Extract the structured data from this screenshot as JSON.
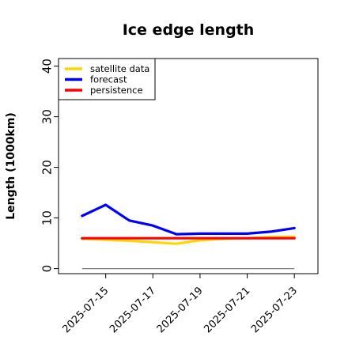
{
  "chart_data": {
    "type": "line",
    "title": "Ice edge length",
    "xlabel": "",
    "ylabel": "Length (1000km)",
    "x": [
      "2025-07-14",
      "2025-07-15",
      "2025-07-16",
      "2025-07-17",
      "2025-07-18",
      "2025-07-19",
      "2025-07-20",
      "2025-07-21",
      "2025-07-22",
      "2025-07-23"
    ],
    "xticks": [
      "2025-07-15",
      "2025-07-17",
      "2025-07-19",
      "2025-07-21",
      "2025-07-23"
    ],
    "xtick_colors": [
      "#2e8b2e",
      "#000000",
      "#000000",
      "#000000",
      "#000000"
    ],
    "yticks": [
      "0",
      "10",
      "20",
      "30",
      "40"
    ],
    "ylim": [
      -1,
      41.5
    ],
    "xlim": [
      "2025-07-13",
      "2025-07-24"
    ],
    "grid": false,
    "legend_position": "top-left",
    "series": [
      {
        "name": "satellite data",
        "color": "#ffd700",
        "values": [
          5.9,
          5.7,
          5.5,
          5.2,
          4.9,
          5.6,
          5.9,
          6.0,
          6.2,
          6.3
        ]
      },
      {
        "name": "forecast",
        "color": "#0000ff",
        "values": [
          10.4,
          12.6,
          9.5,
          8.5,
          6.8,
          6.9,
          6.9,
          6.9,
          7.3,
          8.0
        ]
      },
      {
        "name": "persistence",
        "color": "#ff0000",
        "values": [
          6.0,
          6.0,
          6.0,
          6.0,
          6.0,
          6.0,
          6.0,
          6.0,
          6.0,
          6.0
        ]
      }
    ],
    "reference_line": {
      "y": 0,
      "color": "#808080"
    }
  }
}
